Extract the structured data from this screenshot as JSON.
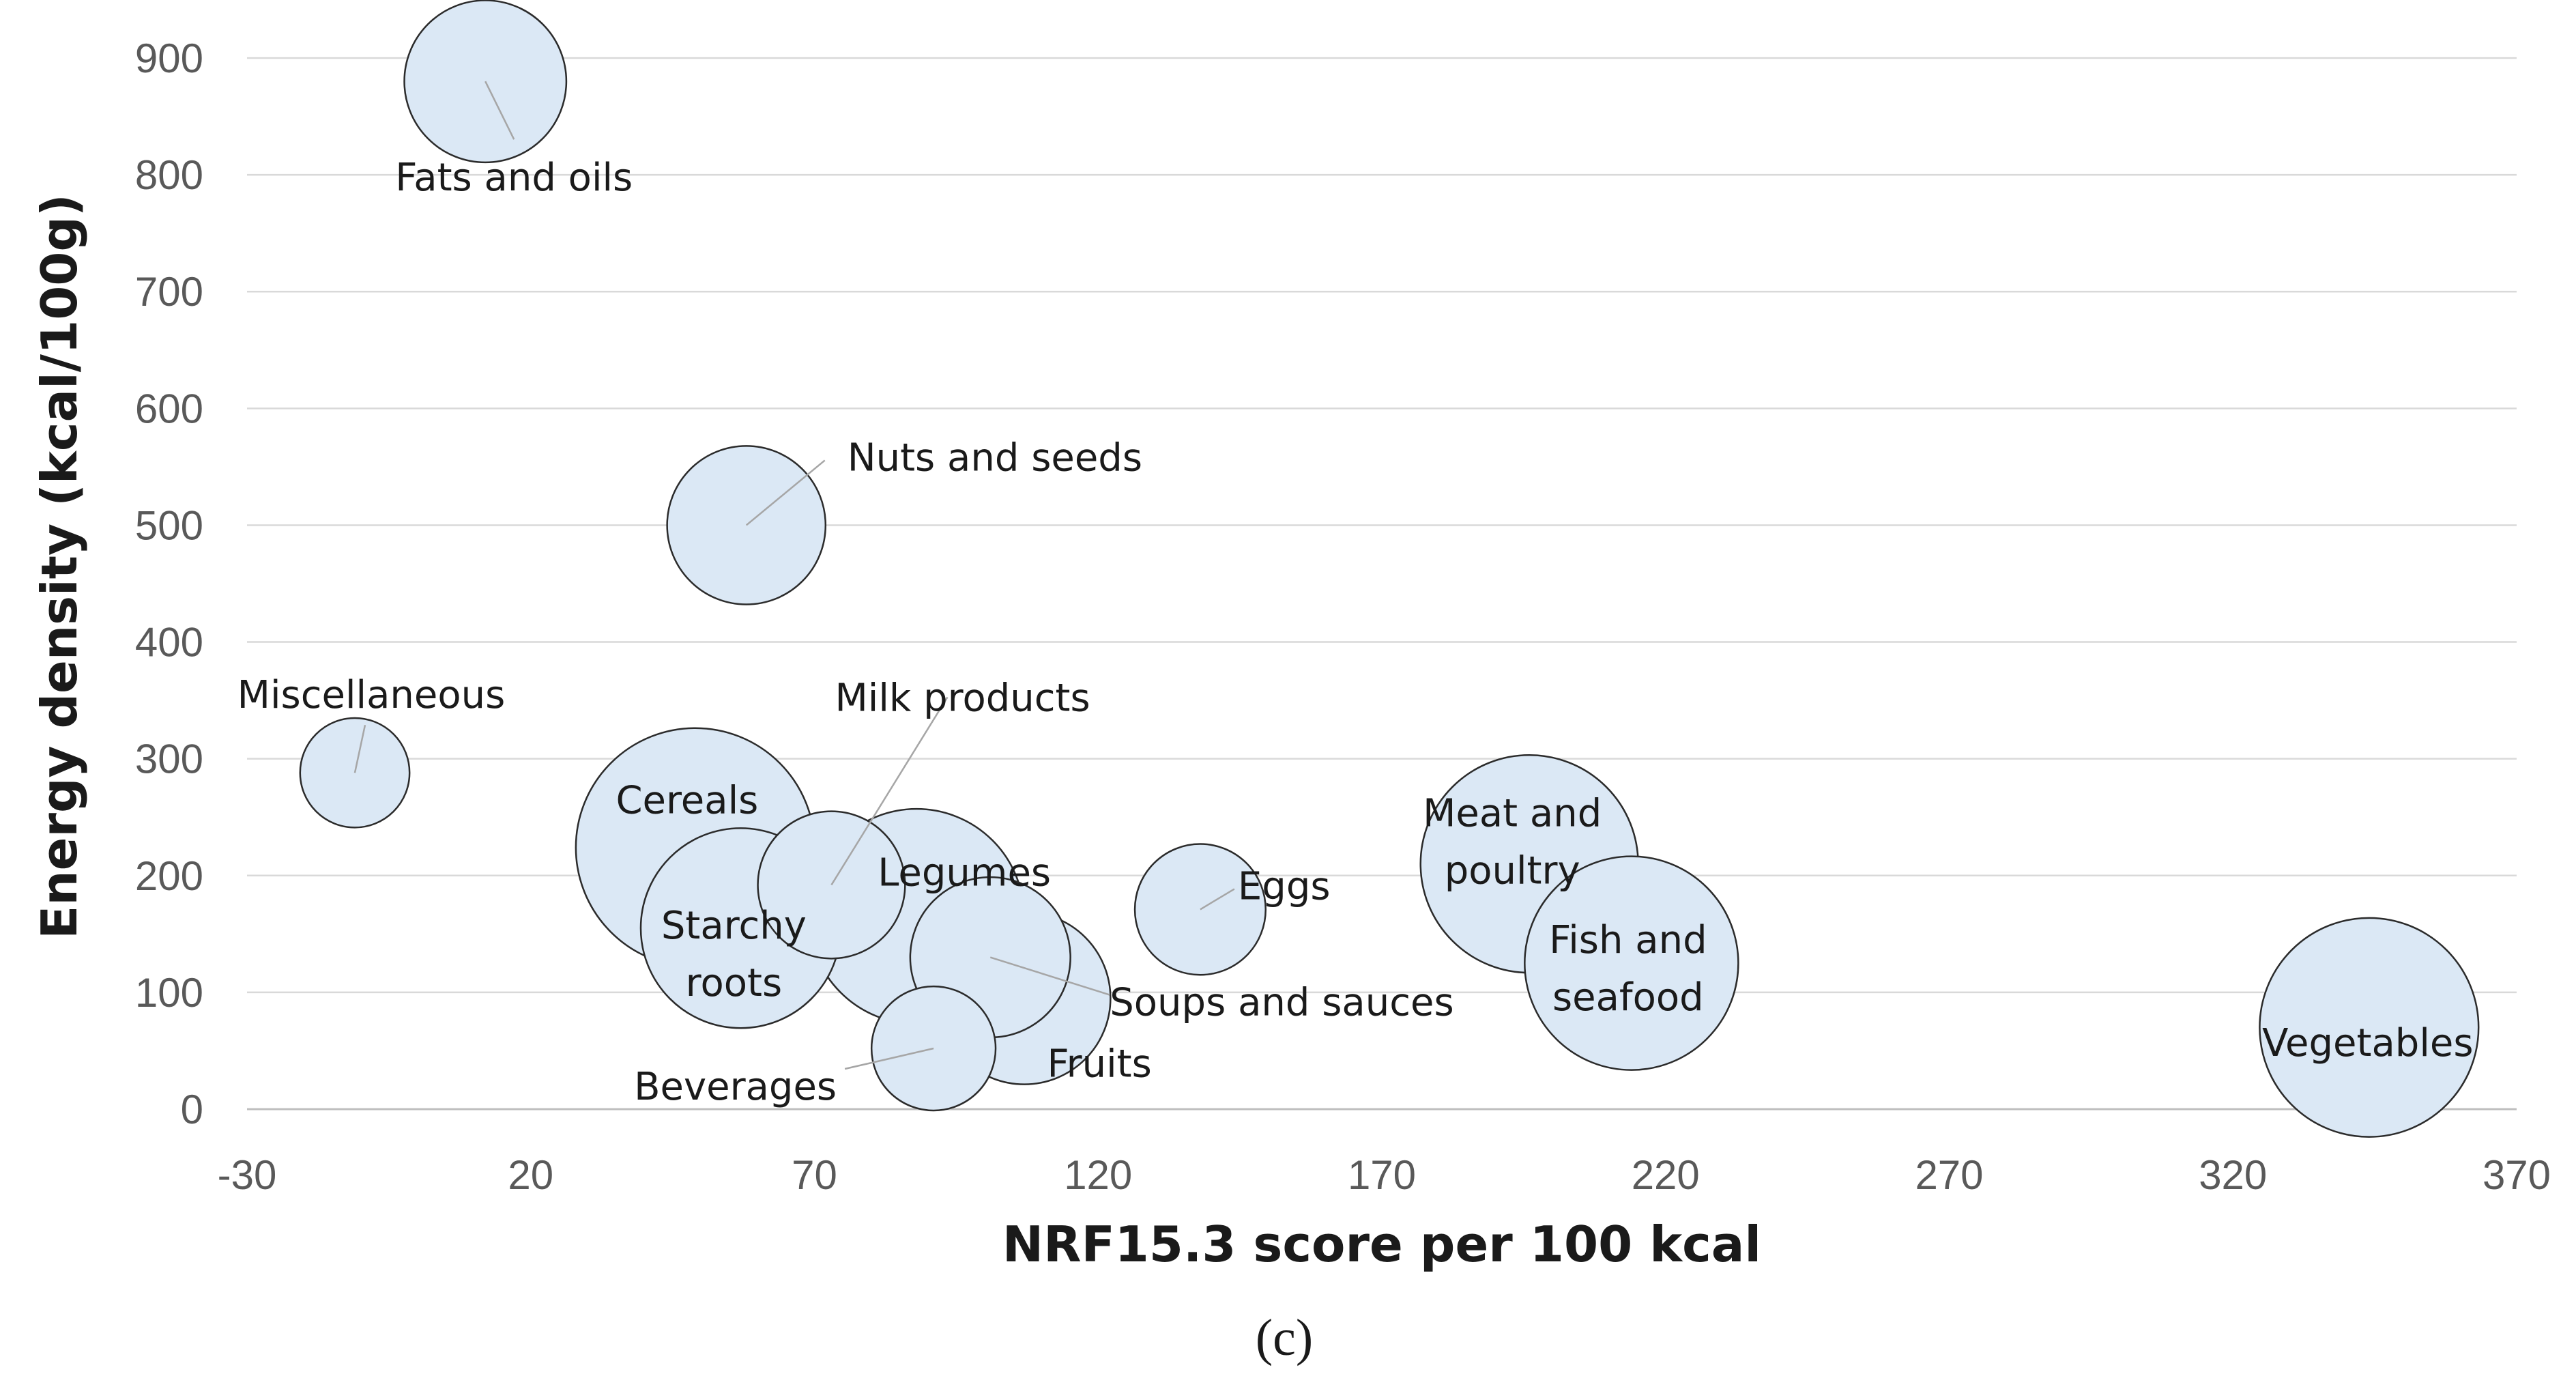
{
  "chart_data": {
    "type": "bubble",
    "xlabel": "NRF15.3 score per 100 kcal",
    "ylabel": "Energy density (kcal/100g)",
    "caption": "(c)",
    "xlim": [
      -30,
      370
    ],
    "ylim": [
      0,
      900
    ],
    "xticks": [
      -30,
      20,
      70,
      120,
      170,
      220,
      270,
      320,
      370
    ],
    "yticks": [
      0,
      100,
      200,
      300,
      400,
      500,
      600,
      700,
      800,
      900
    ],
    "grid": true,
    "points": [
      {
        "label": "Fats and oils",
        "lines": [
          "Fats and oils"
        ],
        "x": 12,
        "y": 880,
        "size": 0.46
      },
      {
        "label": "Nuts and seeds",
        "lines": [
          "Nuts and seeds"
        ],
        "x": 58,
        "y": 500,
        "size": 0.44
      },
      {
        "label": "Miscellaneous",
        "lines": [
          "Miscellaneous"
        ],
        "x": -11,
        "y": 288,
        "size": 0.21
      },
      {
        "label": "Cereals",
        "lines": [
          "Cereals"
        ],
        "x": 49,
        "y": 224,
        "size": 1.0
      },
      {
        "label": "Legumes",
        "lines": [
          "Legumes"
        ],
        "x": 88,
        "y": 165,
        "size": 0.81
      },
      {
        "label": "Starchy roots",
        "lines": [
          "Starchy",
          "roots"
        ],
        "x": 57,
        "y": 155,
        "size": 0.7
      },
      {
        "label": "Milk products",
        "lines": [
          "Milk products"
        ],
        "x": 73,
        "y": 192,
        "size": 0.38
      },
      {
        "label": "Fruits",
        "lines": [
          "Fruits"
        ],
        "x": 107,
        "y": 95,
        "size": 0.52
      },
      {
        "label": "Soups and sauces",
        "lines": [
          "Soups and sauces"
        ],
        "x": 101,
        "y": 130,
        "size": 0.45
      },
      {
        "label": "Beverages",
        "lines": [
          "Beverages"
        ],
        "x": 91,
        "y": 52,
        "size": 0.27
      },
      {
        "label": "Eggs",
        "lines": [
          "Eggs"
        ],
        "x": 138,
        "y": 171,
        "size": 0.3
      },
      {
        "label": "Meat and poultry",
        "lines": [
          "Meat and",
          "poultry"
        ],
        "x": 196,
        "y": 210,
        "size": 0.83
      },
      {
        "label": "Fish and seafood",
        "lines": [
          "Fish and",
          "seafood"
        ],
        "x": 214,
        "y": 125,
        "size": 0.8
      },
      {
        "label": "Vegetables",
        "lines": [
          "Vegetables"
        ],
        "x": 344,
        "y": 70,
        "size": 0.84
      }
    ]
  },
  "colors": {
    "bubble_fill": "#dbe8f5",
    "bubble_stroke": "#2b2b2b",
    "grid": "#d9d9d9",
    "tick_text": "#595959"
  }
}
